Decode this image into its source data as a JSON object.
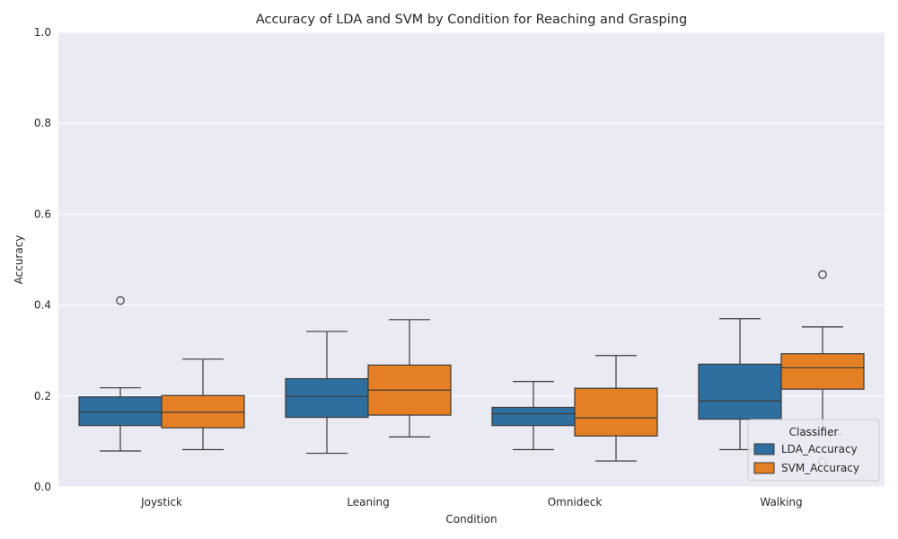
{
  "chart_data": {
    "type": "box",
    "title": "Accuracy of LDA and SVM by Condition for Reaching and Grasping",
    "xlabel": "Condition",
    "ylabel": "Accuracy",
    "ylim": [
      0.0,
      1.0
    ],
    "yticks": [
      "0.0",
      "0.2",
      "0.4",
      "0.6",
      "0.8",
      "1.0"
    ],
    "categories": [
      "Joystick",
      "Leaning",
      "Omnideck",
      "Walking"
    ],
    "grid": true,
    "legend": {
      "title": "Classifier",
      "placement": "lower-right"
    },
    "series": [
      {
        "name": "LDA_Accuracy",
        "color": "#2f6f9f",
        "boxes": [
          {
            "whisker_low": 0.079,
            "q1": 0.135,
            "median": 0.165,
            "q3": 0.198,
            "whisker_high": 0.218,
            "outliers": [
              0.41
            ]
          },
          {
            "whisker_low": 0.074,
            "q1": 0.153,
            "median": 0.199,
            "q3": 0.238,
            "whisker_high": 0.342,
            "outliers": []
          },
          {
            "whisker_low": 0.082,
            "q1": 0.135,
            "median": 0.161,
            "q3": 0.175,
            "whisker_high": 0.232,
            "outliers": []
          },
          {
            "whisker_low": 0.082,
            "q1": 0.149,
            "median": 0.189,
            "q3": 0.27,
            "whisker_high": 0.37,
            "outliers": []
          }
        ]
      },
      {
        "name": "SVM_Accuracy",
        "color": "#e57f24",
        "boxes": [
          {
            "whisker_low": 0.082,
            "q1": 0.13,
            "median": 0.164,
            "q3": 0.201,
            "whisker_high": 0.281,
            "outliers": []
          },
          {
            "whisker_low": 0.11,
            "q1": 0.158,
            "median": 0.213,
            "q3": 0.268,
            "whisker_high": 0.368,
            "outliers": []
          },
          {
            "whisker_low": 0.057,
            "q1": 0.112,
            "median": 0.152,
            "q3": 0.217,
            "whisker_high": 0.289,
            "outliers": []
          },
          {
            "whisker_low": 0.115,
            "q1": 0.215,
            "median": 0.262,
            "q3": 0.293,
            "whisker_high": 0.352,
            "outliers": [
              0.467,
              0.055
            ]
          }
        ]
      }
    ]
  }
}
